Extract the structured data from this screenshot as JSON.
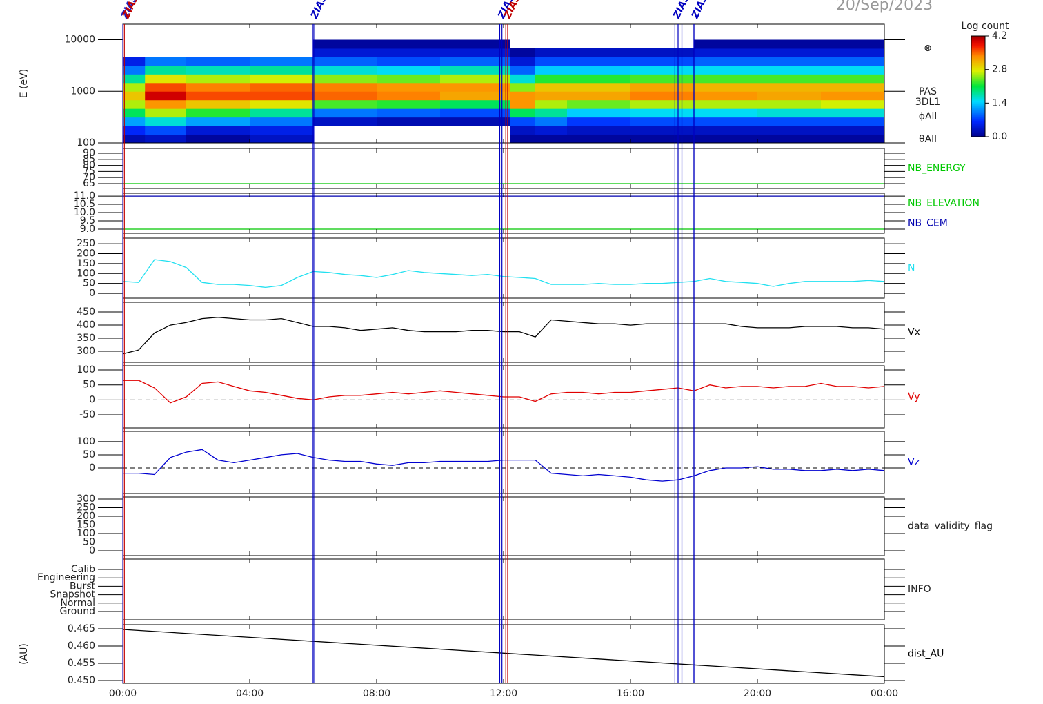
{
  "title": "20/Sep/2023",
  "event_markers": [
    {
      "x": 0,
      "color": "#2020c0",
      "label": "ZIAS"
    },
    {
      "x": 0.05,
      "color": "#c00000",
      "label": "ZIAS"
    },
    {
      "x": 5.98,
      "color": "#0000c0",
      "label": "ZIAS"
    },
    {
      "x": 6.02,
      "color": "#0000c0"
    },
    {
      "x": 11.88,
      "color": "#0000c0",
      "label": "ZIAS"
    },
    {
      "x": 11.95,
      "color": "#0000c0"
    },
    {
      "x": 12.07,
      "color": "#c00000",
      "label": "ZIAS"
    },
    {
      "x": 12.13,
      "color": "#c00000"
    },
    {
      "x": 17.4,
      "color": "#0000c0",
      "label": "ZIAS"
    },
    {
      "x": 17.5,
      "color": "#0000c0"
    },
    {
      "x": 17.62,
      "color": "#0000c0"
    },
    {
      "x": 17.98,
      "color": "#0000c0",
      "label": "ZIAS"
    },
    {
      "x": 18.02,
      "color": "#0000c0"
    }
  ],
  "chart_data": [
    {
      "type": "heatmap",
      "ylabel": "E (eV)",
      "log_y": true,
      "ylim": [
        100,
        20000
      ],
      "yticks": [
        100,
        1000,
        10000
      ],
      "colormap": "rainbow",
      "x_edges": [
        0,
        0.7,
        2,
        4,
        6,
        8,
        10,
        12.2,
        13,
        14,
        16,
        18,
        20,
        22,
        24
      ],
      "y_edges": [
        100,
        147,
        215,
        316,
        464,
        681,
        1000,
        1468,
        2154,
        3162,
        4642,
        6813,
        10000,
        14678
      ],
      "z": [
        [
          0.2,
          0.6,
          1.2,
          2.0,
          2.6,
          3.0,
          2.6,
          1.8,
          1.0,
          0.5,
          null,
          null,
          null
        ],
        [
          0.3,
          0.8,
          1.6,
          2.6,
          3.3,
          4.0,
          3.6,
          2.8,
          1.8,
          1.0,
          null,
          null,
          null
        ],
        [
          0.1,
          0.4,
          1.2,
          2.2,
          3.0,
          3.6,
          3.4,
          2.6,
          1.7,
          0.9,
          null,
          null,
          null
        ],
        [
          0.3,
          0.5,
          1.0,
          1.8,
          2.8,
          3.6,
          3.5,
          2.7,
          1.8,
          1.0,
          null,
          null,
          null
        ],
        [
          null,
          null,
          0.3,
          1.0,
          2.3,
          3.5,
          3.4,
          2.5,
          1.6,
          0.9,
          0.4,
          0.1,
          null
        ],
        [
          null,
          null,
          0.2,
          0.9,
          2.2,
          3.4,
          3.3,
          2.4,
          1.5,
          0.8,
          0.4,
          0.1,
          null
        ],
        [
          null,
          null,
          0.2,
          0.8,
          2.0,
          3.2,
          3.3,
          2.6,
          1.7,
          0.9,
          0.4,
          0.1,
          null
        ],
        [
          0.1,
          0.3,
          0.8,
          2.0,
          3.3,
          3.3,
          2.5,
          1.6,
          0.9,
          0.4,
          0.1,
          null,
          null
        ],
        [
          0.1,
          0.4,
          1.0,
          1.8,
          2.6,
          3.2,
          3.0,
          2.2,
          1.4,
          0.8,
          0.3,
          null,
          null
        ],
        [
          0.1,
          0.3,
          0.7,
          1.4,
          2.4,
          3.2,
          3.0,
          2.2,
          1.4,
          0.8,
          0.3,
          null,
          null
        ],
        [
          0.1,
          0.3,
          0.8,
          1.5,
          2.6,
          3.4,
          3.2,
          2.3,
          1.5,
          0.8,
          0.3,
          null,
          null
        ],
        [
          0.1,
          0.3,
          0.8,
          1.5,
          2.6,
          3.3,
          3.1,
          2.3,
          1.5,
          0.9,
          0.4,
          0.1,
          null
        ],
        [
          0.1,
          0.3,
          0.8,
          1.6,
          2.6,
          3.2,
          3.1,
          2.3,
          1.5,
          0.9,
          0.4,
          0.1,
          null
        ],
        [
          0.1,
          0.3,
          0.8,
          1.6,
          2.7,
          3.3,
          3.1,
          2.3,
          1.5,
          0.9,
          0.4,
          0.1,
          null
        ]
      ],
      "annotations": [
        "⊗",
        "PAS",
        "3DL1",
        "ϕAll",
        "θAll"
      ],
      "colorbar": {
        "label": "Log count",
        "zlim": [
          0,
          4.2
        ],
        "ticks": [
          {
            "value": 0,
            "label": "0.0"
          },
          1.4,
          2.8,
          4.2
        ]
      }
    },
    {
      "type": "line",
      "ylim": [
        61,
        94
      ],
      "yticks": [
        65,
        70,
        75,
        80,
        85,
        90
      ],
      "x": [
        0,
        24
      ],
      "series": [
        {
          "name": "NB_ENERGY",
          "color": "#00c800",
          "values": [
            65,
            65
          ]
        }
      ]
    },
    {
      "type": "line",
      "ylim": [
        8.75,
        11.17
      ],
      "yticks": [
        {
          "value": 9,
          "label": "9.0"
        },
        9.5,
        {
          "value": 10,
          "label": "10.0"
        },
        10.5,
        {
          "value": 11,
          "label": "11.0"
        }
      ],
      "x": [
        0,
        24
      ],
      "series": [
        {
          "name": "NB_ELEVATION",
          "color": "#00c800",
          "values": [
            9,
            9
          ]
        },
        {
          "name": "NB_CEM",
          "color": "#0000b0",
          "values": [
            11,
            11
          ]
        }
      ]
    },
    {
      "type": "line",
      "ylim": [
        -24,
        278
      ],
      "yticks": [
        0,
        50,
        100,
        150,
        200,
        250
      ],
      "x": [
        0,
        0.5,
        1,
        1.5,
        2,
        2.5,
        3,
        3.5,
        4,
        4.5,
        5,
        5.5,
        6,
        6.5,
        7,
        7.5,
        8,
        8.5,
        9,
        9.5,
        10,
        10.5,
        11,
        11.5,
        12,
        12.5,
        13,
        13.5,
        14,
        14.5,
        15,
        15.5,
        16,
        16.5,
        17,
        17.5,
        18,
        18.5,
        19,
        19.5,
        20,
        20.5,
        21,
        21.5,
        22,
        22.5,
        23,
        23.5,
        24
      ],
      "series": [
        {
          "name": "N",
          "color": "#22e0f0",
          "values": [
            60,
            55,
            170,
            160,
            130,
            55,
            45,
            45,
            40,
            30,
            40,
            80,
            110,
            105,
            95,
            90,
            80,
            95,
            115,
            105,
            100,
            95,
            90,
            95,
            85,
            80,
            75,
            45,
            45,
            45,
            50,
            45,
            45,
            50,
            50,
            55,
            60,
            75,
            60,
            55,
            50,
            35,
            50,
            60,
            60,
            60,
            60,
            65,
            60
          ]
        }
      ]
    },
    {
      "type": "line",
      "ylim": [
        258,
        487
      ],
      "yticks": [
        300,
        350,
        400,
        450
      ],
      "x": [
        0,
        0.5,
        1,
        1.5,
        2,
        2.5,
        3,
        3.5,
        4,
        4.5,
        5,
        5.5,
        6,
        6.5,
        7,
        7.5,
        8,
        8.5,
        9,
        9.5,
        10,
        10.5,
        11,
        11.5,
        12,
        12.5,
        13,
        13.5,
        14,
        14.5,
        15,
        15.5,
        16,
        16.5,
        17,
        17.5,
        18,
        18.5,
        19,
        19.5,
        20,
        20.5,
        21,
        21.5,
        22,
        22.5,
        23,
        23.5,
        24
      ],
      "series": [
        {
          "name": "Vx",
          "color": "#000000",
          "values": [
            290,
            305,
            370,
            400,
            410,
            425,
            430,
            425,
            420,
            420,
            425,
            410,
            395,
            395,
            390,
            380,
            385,
            390,
            380,
            375,
            375,
            375,
            380,
            380,
            375,
            375,
            355,
            420,
            415,
            410,
            405,
            405,
            400,
            405,
            405,
            405,
            405,
            405,
            405,
            395,
            390,
            390,
            390,
            395,
            395,
            395,
            390,
            390,
            385
          ]
        }
      ]
    },
    {
      "type": "line",
      "ylim": [
        -94,
        114
      ],
      "yticks": [
        -50,
        0,
        50,
        100
      ],
      "zero_line": true,
      "x": [
        0,
        0.5,
        1,
        1.5,
        2,
        2.5,
        3,
        3.5,
        4,
        4.5,
        5,
        5.5,
        6,
        6.5,
        7,
        7.5,
        8,
        8.5,
        9,
        9.5,
        10,
        10.5,
        11,
        11.5,
        12,
        12.5,
        13,
        13.5,
        14,
        14.5,
        15,
        15.5,
        16,
        16.5,
        17,
        17.5,
        18,
        18.5,
        19,
        19.5,
        20,
        20.5,
        21,
        21.5,
        22,
        22.5,
        23,
        23.5,
        24
      ],
      "series": [
        {
          "name": "Vy",
          "color": "#e00000",
          "values": [
            65,
            65,
            40,
            -10,
            10,
            55,
            60,
            45,
            30,
            25,
            15,
            5,
            0,
            10,
            15,
            15,
            20,
            25,
            20,
            25,
            30,
            25,
            20,
            15,
            10,
            10,
            -5,
            20,
            25,
            25,
            20,
            25,
            25,
            30,
            35,
            40,
            30,
            50,
            40,
            45,
            45,
            40,
            45,
            45,
            55,
            45,
            45,
            40,
            45
          ]
        }
      ]
    },
    {
      "type": "line",
      "ylim": [
        -97,
        139
      ],
      "yticks": [
        0,
        50,
        100
      ],
      "zero_line": true,
      "x": [
        0,
        0.5,
        1,
        1.5,
        2,
        2.5,
        3,
        3.5,
        4,
        4.5,
        5,
        5.5,
        6,
        6.5,
        7,
        7.5,
        8,
        8.5,
        9,
        9.5,
        10,
        10.5,
        11,
        11.5,
        12,
        12.5,
        13,
        13.5,
        14,
        14.5,
        15,
        15.5,
        16,
        16.5,
        17,
        17.5,
        18,
        18.5,
        19,
        19.5,
        20,
        20.5,
        21,
        21.5,
        22,
        22.5,
        23,
        23.5,
        24
      ],
      "series": [
        {
          "name": "Vz",
          "color": "#0000d0",
          "values": [
            -20,
            -20,
            -25,
            40,
            60,
            70,
            30,
            20,
            30,
            40,
            50,
            55,
            40,
            30,
            25,
            25,
            15,
            10,
            20,
            20,
            25,
            25,
            25,
            25,
            30,
            30,
            30,
            -20,
            -25,
            -30,
            -25,
            -30,
            -35,
            -45,
            -50,
            -45,
            -30,
            -10,
            0,
            0,
            5,
            -5,
            -5,
            -10,
            -10,
            -5,
            -10,
            -5,
            -10
          ]
        }
      ]
    },
    {
      "type": "line",
      "label": "data_validity_flag",
      "ylim": [
        -28,
        312
      ],
      "yticks": [
        0,
        50,
        100,
        150,
        200,
        250,
        300
      ]
    },
    {
      "type": "line",
      "label": "INFO",
      "categories": [
        "Calib",
        "Engineering",
        "Burst",
        "Snapshot",
        "Normal",
        "Ground"
      ]
    },
    {
      "type": "line",
      "ylabel": "(AU)",
      "ylim": [
        0.4492,
        0.4662
      ],
      "yticks": [
        {
          "value": 0.45,
          "label": "0.450"
        },
        0.455,
        {
          "value": 0.46,
          "label": "0.460"
        },
        0.465
      ],
      "x": [
        0,
        24
      ],
      "series": [
        {
          "name": "dist_AU",
          "color": "#000000",
          "values": [
            0.4648,
            0.4511
          ]
        }
      ],
      "xlim": [
        0,
        24
      ],
      "xticks": [
        {
          "value": 0,
          "label": "00:00"
        },
        {
          "value": 4,
          "label": "04:00"
        },
        {
          "value": 8,
          "label": "08:00"
        },
        {
          "value": 12,
          "label": "12:00"
        },
        {
          "value": 16,
          "label": "16:00"
        },
        {
          "value": 20,
          "label": "20:00"
        },
        {
          "value": 24,
          "label": "00:00"
        }
      ]
    }
  ]
}
